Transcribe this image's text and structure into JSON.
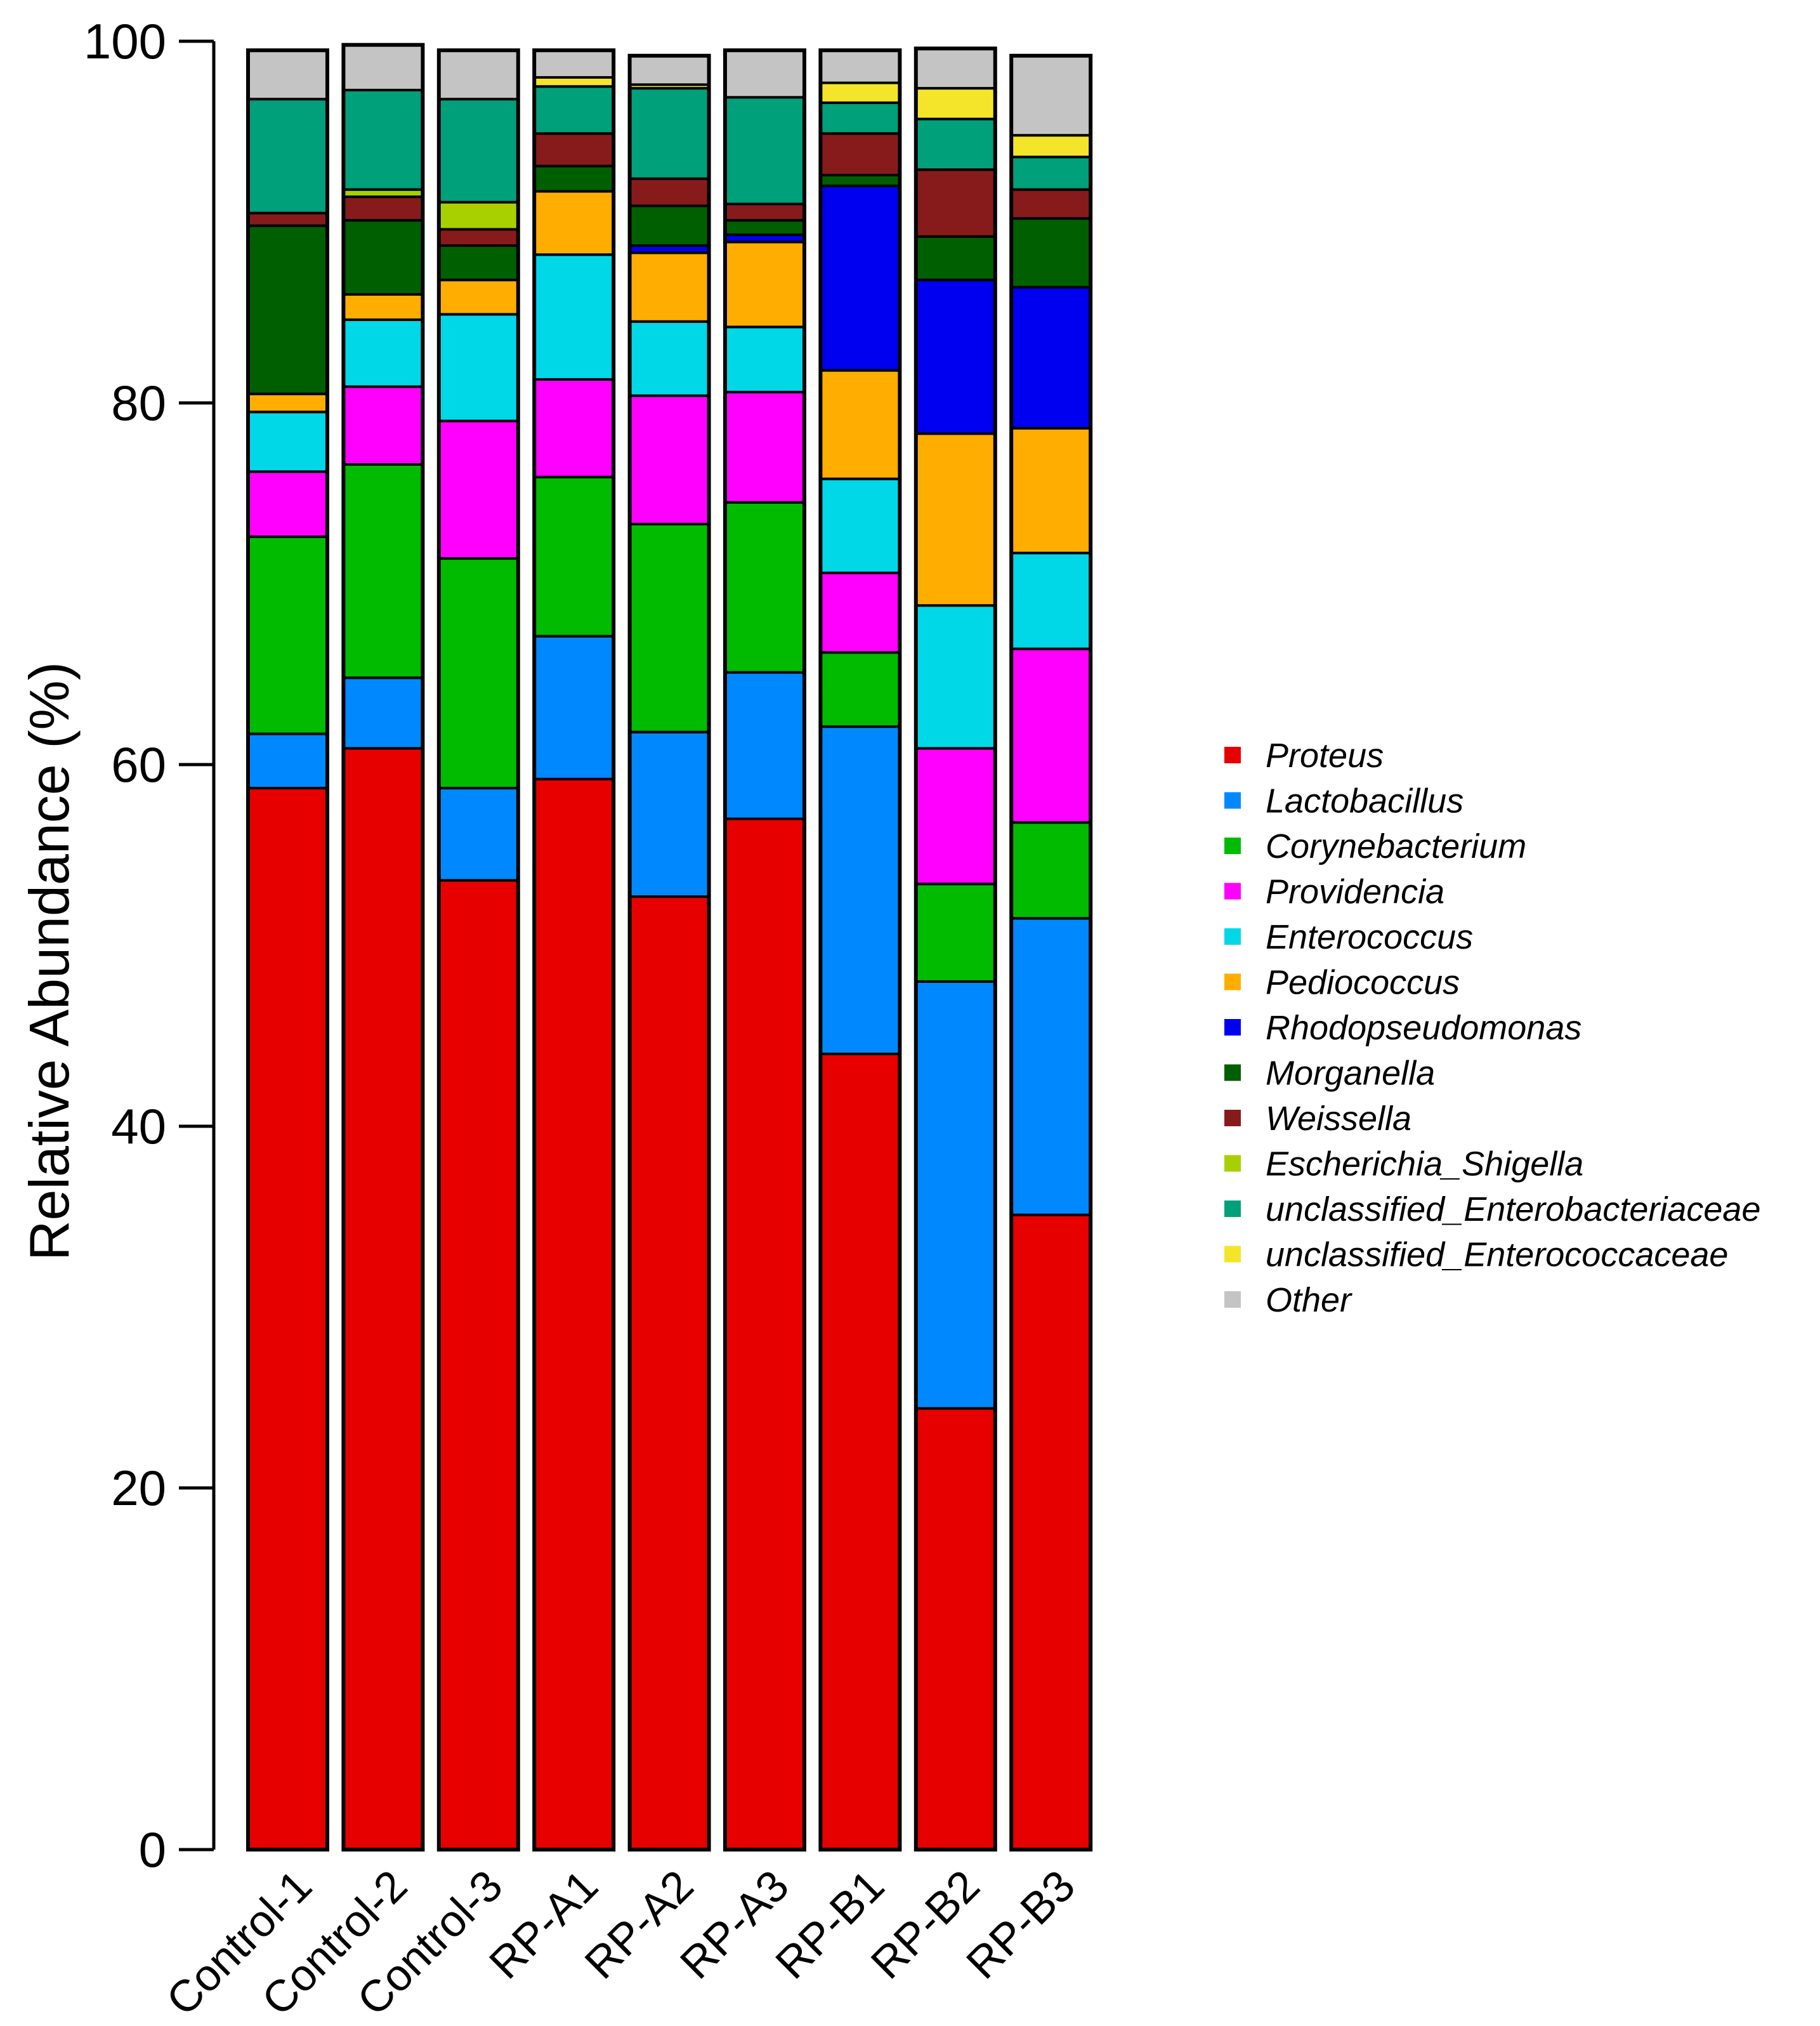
{
  "chart_data": {
    "type": "stacked-bar",
    "title": "",
    "xlabel": "",
    "ylabel": "Relative Abundance (%)",
    "ylim": [
      0,
      100
    ],
    "yticks": [
      "0",
      "20",
      "40",
      "60",
      "80",
      "100"
    ],
    "ytick_values": [
      0,
      20,
      40,
      60,
      80,
      100
    ],
    "grid": false,
    "legend_position": "right",
    "categories": [
      "Control-1",
      "Control-2",
      "Control-3",
      "RP-A1",
      "RP-A2",
      "RP-A3",
      "RP-B1",
      "RP-B2",
      "RP-B3"
    ],
    "series": [
      {
        "name": "Proteus",
        "color": "#e60000",
        "values": [
          58.7,
          60.9,
          53.6,
          59.2,
          52.7,
          57.0,
          44.0,
          24.4,
          35.1
        ]
      },
      {
        "name": "Lactobacillus",
        "color": "#0089ff",
        "values": [
          3.0,
          3.9,
          5.1,
          7.9,
          9.1,
          8.1,
          18.1,
          23.6,
          16.4
        ]
      },
      {
        "name": "Corynebacterium",
        "color": "#00bb00",
        "values": [
          10.9,
          11.8,
          12.7,
          8.8,
          11.5,
          9.4,
          4.1,
          5.4,
          5.3
        ]
      },
      {
        "name": "Providencia",
        "color": "#ff00ff",
        "values": [
          3.6,
          4.3,
          7.6,
          5.4,
          7.1,
          6.1,
          4.4,
          7.5,
          9.6
        ]
      },
      {
        "name": "Enterococcus",
        "color": "#00d8e8",
        "values": [
          3.3,
          3.7,
          5.9,
          6.9,
          4.1,
          3.6,
          5.2,
          7.9,
          5.3
        ]
      },
      {
        "name": "Pediococcus",
        "color": "#ffae00",
        "values": [
          1.0,
          1.4,
          1.9,
          3.5,
          3.8,
          4.7,
          6.0,
          9.5,
          6.9
        ]
      },
      {
        "name": "Rhodopseudomonas",
        "color": "#0000f0",
        "values": [
          0.0,
          0.0,
          0.0,
          0.0,
          0.4,
          0.4,
          10.2,
          8.5,
          7.8
        ]
      },
      {
        "name": "Morganella",
        "color": "#005f00",
        "values": [
          9.3,
          4.1,
          1.9,
          1.4,
          2.2,
          0.8,
          0.6,
          2.4,
          3.8
        ]
      },
      {
        "name": "Weissella",
        "color": "#871b1b",
        "values": [
          0.7,
          1.3,
          0.9,
          1.8,
          1.5,
          0.9,
          2.3,
          3.7,
          1.6
        ]
      },
      {
        "name": "Escherichia_Shigella",
        "color": "#a8d000",
        "values": [
          0.0,
          0.4,
          1.5,
          0.0,
          0.0,
          0.0,
          0.0,
          0.0,
          0.0
        ]
      },
      {
        "name": "unclassified_Enterobacteriaceae",
        "color": "#00a07a",
        "values": [
          6.3,
          5.5,
          5.7,
          2.6,
          5.0,
          5.9,
          1.7,
          2.8,
          1.8
        ]
      },
      {
        "name": "unclassified_Enterococcaceae",
        "color": "#f5e52a",
        "values": [
          0.0,
          0.0,
          0.0,
          0.5,
          0.2,
          0.0,
          1.1,
          1.7,
          1.2
        ]
      },
      {
        "name": "Other",
        "color": "#c4c4c4",
        "values": [
          2.7,
          2.5,
          2.7,
          1.5,
          1.6,
          2.6,
          1.8,
          2.2,
          4.4
        ]
      }
    ]
  }
}
